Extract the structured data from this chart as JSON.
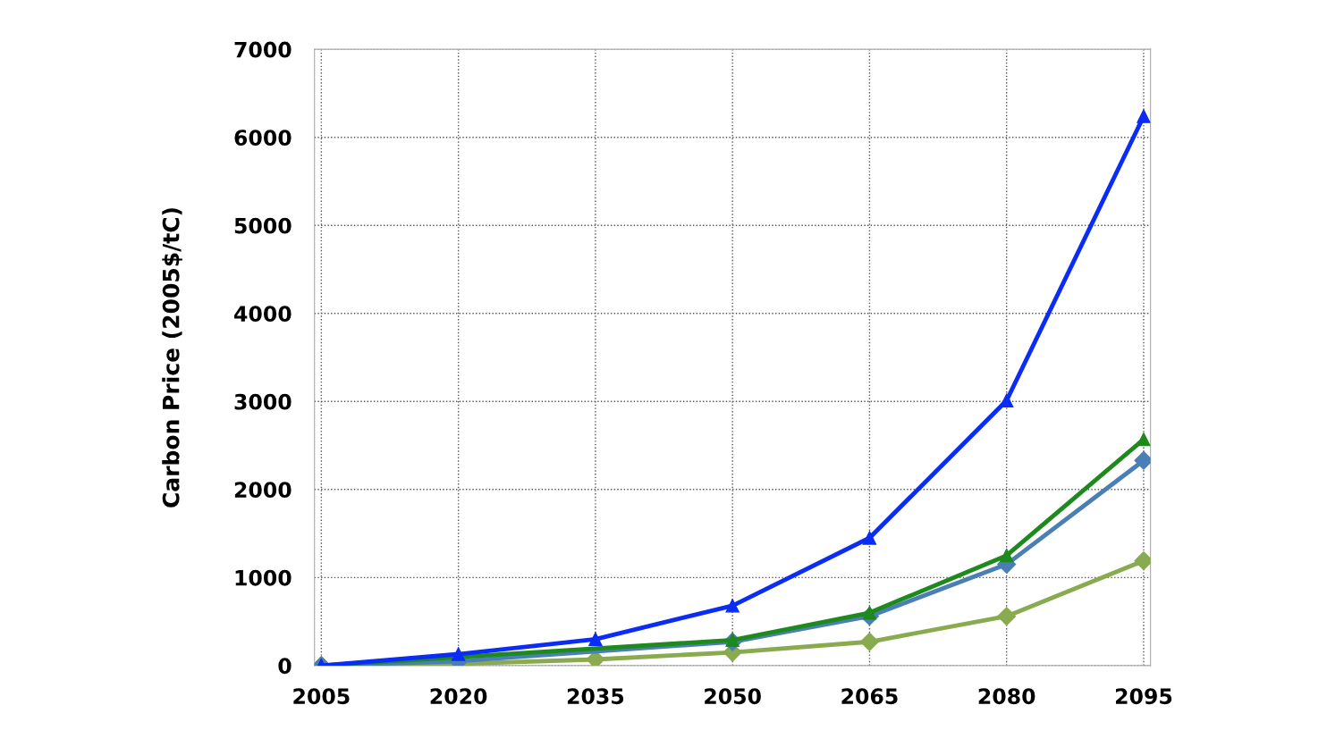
{
  "chart_data": {
    "type": "line",
    "ylabel": "Carbon Price (2005$/tC)",
    "categories": [
      "2005",
      "2020",
      "2035",
      "2050",
      "2065",
      "2080",
      "2095"
    ],
    "series": [
      {
        "color": "#0a2cf5",
        "marker": "triangle",
        "values": [
          0,
          130,
          300,
          680,
          1450,
          3010,
          6240
        ]
      },
      {
        "color": "#1e8a1e",
        "marker": "triangle",
        "values": [
          0,
          null,
          null,
          290,
          600,
          1250,
          2570
        ]
      },
      {
        "color": "#4a7fb5",
        "marker": "diamond",
        "values": [
          0,
          50,
          null,
          270,
          560,
          1150,
          2330
        ]
      },
      {
        "color": "#8aaa50",
        "marker": "diamond",
        "values": [
          0,
          20,
          70,
          150,
          270,
          560,
          1190
        ]
      }
    ],
    "ylim": [
      0,
      7000
    ],
    "yticks": [
      0,
      1000,
      2000,
      3000,
      4000,
      5000,
      6000,
      7000
    ],
    "grid": true
  }
}
